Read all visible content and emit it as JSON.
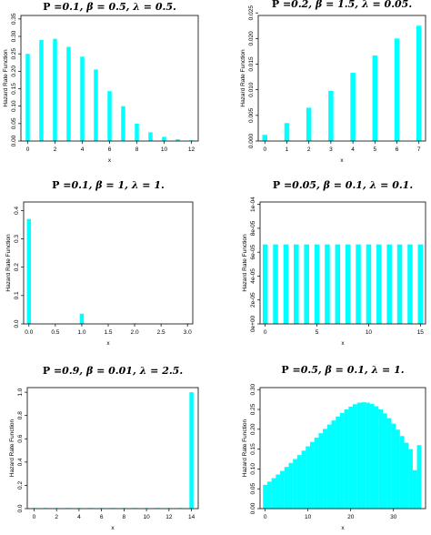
{
  "colors": {
    "bar": "#00ffff",
    "frame": "#000000"
  },
  "chart_data": [
    {
      "type": "bar",
      "title_p": "P",
      "title": "=0.1, β = 0.5, λ = 0.5.",
      "xlabel": "x",
      "ylabel": "Hazard Rate Function",
      "xlim": [
        -0.5,
        12.5
      ],
      "ylim": [
        0,
        0.36
      ],
      "xticks": [
        0,
        2,
        4,
        6,
        8,
        10,
        12
      ],
      "yticks": [
        0.0,
        0.05,
        0.1,
        0.15,
        0.2,
        0.25,
        0.3,
        0.35
      ],
      "ytick_labels": [
        "0.00",
        "0.05",
        "0.10",
        "0.15",
        "0.20",
        "0.25",
        "0.30",
        "0.35"
      ],
      "x": [
        0,
        1,
        2,
        3,
        4,
        5,
        6,
        7,
        8,
        9,
        10,
        11,
        12
      ],
      "values": [
        0.25,
        0.29,
        0.293,
        0.27,
        0.242,
        0.205,
        0.143,
        0.1,
        0.05,
        0.025,
        0.012,
        0.005,
        0.002
      ]
    },
    {
      "type": "bar",
      "title_p": "P",
      "title": "=0.2, β = 1.5, λ = 0.05.",
      "xlabel": "x",
      "ylabel": "Hazard Rate Function",
      "xlim": [
        -0.3,
        7.3
      ],
      "ylim": [
        0,
        0.0245
      ],
      "xticks": [
        0,
        1,
        2,
        3,
        4,
        5,
        6,
        7
      ],
      "yticks": [
        0.0,
        0.005,
        0.01,
        0.015,
        0.02,
        0.025
      ],
      "ytick_labels": [
        "0.000",
        "0.005",
        "0.010",
        "0.015",
        "0.020",
        "0.025"
      ],
      "x": [
        0,
        1,
        2,
        3,
        4,
        5,
        6,
        7
      ],
      "values": [
        0.0012,
        0.0035,
        0.0065,
        0.0098,
        0.0133,
        0.0167,
        0.02,
        0.0225
      ]
    },
    {
      "type": "bar",
      "title_p": "P",
      "title": "=0.1, β = 1, λ = 1.",
      "xlabel": "x",
      "ylabel": "Hazard Rate Function",
      "xlim": [
        -0.1,
        3.1
      ],
      "ylim": [
        0,
        0.43
      ],
      "xticks": [
        0,
        0.5,
        1,
        1.5,
        2,
        2.5,
        3
      ],
      "yticks": [
        0.0,
        0.1,
        0.2,
        0.3,
        0.4
      ],
      "ytick_labels": [
        "0.0",
        "0.1",
        "0.2",
        "0.3",
        "0.4"
      ],
      "xtick_labels": [
        "0.0",
        "0.5",
        "1.0",
        "1.5",
        "2.0",
        "2.5",
        "3.0"
      ],
      "x": [
        0,
        1,
        2,
        3
      ],
      "values": [
        0.37,
        0.036,
        0.001,
        0.0001
      ]
    },
    {
      "type": "bar",
      "title_p": "P",
      "title": "=0.05, β = 0.1, λ = 0.1.",
      "xlabel": "x",
      "ylabel": "Hazard Rate Function",
      "xlim": [
        -0.5,
        15.5
      ],
      "ylim": [
        0,
        0.000102
      ],
      "xticks": [
        0,
        5,
        10,
        15
      ],
      "yticks": [
        0,
        2e-05,
        4e-05,
        6e-05,
        8e-05,
        0.0001
      ],
      "ytick_labels": [
        "0e+00",
        "2e-05",
        "4e-05",
        "6e-05",
        "8e-05",
        "1e-04"
      ],
      "x": [
        0,
        1,
        2,
        3,
        4,
        5,
        6,
        7,
        8,
        9,
        10,
        11,
        12,
        13,
        14,
        15
      ],
      "values": [
        6.65e-05,
        6.65e-05,
        6.65e-05,
        6.65e-05,
        6.65e-05,
        6.65e-05,
        6.65e-05,
        6.65e-05,
        6.65e-05,
        6.65e-05,
        6.65e-05,
        6.65e-05,
        6.65e-05,
        6.65e-05,
        6.65e-05,
        6.65e-05
      ]
    },
    {
      "type": "bar",
      "title_p": "P",
      "title": "=0.9, β = 0.01, λ = 2.5.",
      "xlabel": "x",
      "ylabel": "Hazard Rate Function",
      "xlim": [
        -0.6,
        14.6
      ],
      "ylim": [
        0,
        1.04
      ],
      "xticks": [
        0,
        2,
        4,
        6,
        8,
        10,
        12,
        14
      ],
      "yticks": [
        0.0,
        0.2,
        0.4,
        0.6,
        0.8,
        1.0
      ],
      "ytick_labels": [
        "0.0",
        "0.2",
        "0.4",
        "0.6",
        "0.8",
        "1.0"
      ],
      "x": [
        0,
        1,
        2,
        3,
        4,
        5,
        6,
        7,
        8,
        9,
        10,
        11,
        12,
        13,
        14
      ],
      "values": [
        0.002,
        0.002,
        0.002,
        0.002,
        0.002,
        0.002,
        0.002,
        0.002,
        0.002,
        0.002,
        0.002,
        0.002,
        0.002,
        0.002,
        1.0
      ]
    },
    {
      "type": "bar",
      "title_p": "P",
      "title": "=0.5, β = 0.1, λ = 1.",
      "xlabel": "x",
      "ylabel": "Hazard Rate Function",
      "xlim": [
        -1.2,
        37.5
      ],
      "ylim": [
        0,
        0.305
      ],
      "xticks": [
        0,
        10,
        20,
        30
      ],
      "yticks": [
        0.0,
        0.05,
        0.1,
        0.15,
        0.2,
        0.25,
        0.3
      ],
      "ytick_labels": [
        "0.00",
        "0.05",
        "0.10",
        "0.15",
        "0.20",
        "0.25",
        "0.30"
      ],
      "x": [
        0,
        1,
        2,
        3,
        4,
        5,
        6,
        7,
        8,
        9,
        10,
        11,
        12,
        13,
        14,
        15,
        16,
        17,
        18,
        19,
        20,
        21,
        22,
        23,
        24,
        25,
        26,
        27,
        28,
        29,
        30,
        31,
        32,
        33,
        34,
        35,
        36
      ],
      "values": [
        0.06,
        0.068,
        0.077,
        0.086,
        0.095,
        0.105,
        0.115,
        0.125,
        0.135,
        0.146,
        0.157,
        0.168,
        0.179,
        0.19,
        0.201,
        0.212,
        0.222,
        0.232,
        0.241,
        0.25,
        0.257,
        0.263,
        0.267,
        0.268,
        0.267,
        0.264,
        0.258,
        0.25,
        0.24,
        0.228,
        0.214,
        0.199,
        0.183,
        0.166,
        0.15,
        0.097,
        0.16
      ]
    }
  ]
}
